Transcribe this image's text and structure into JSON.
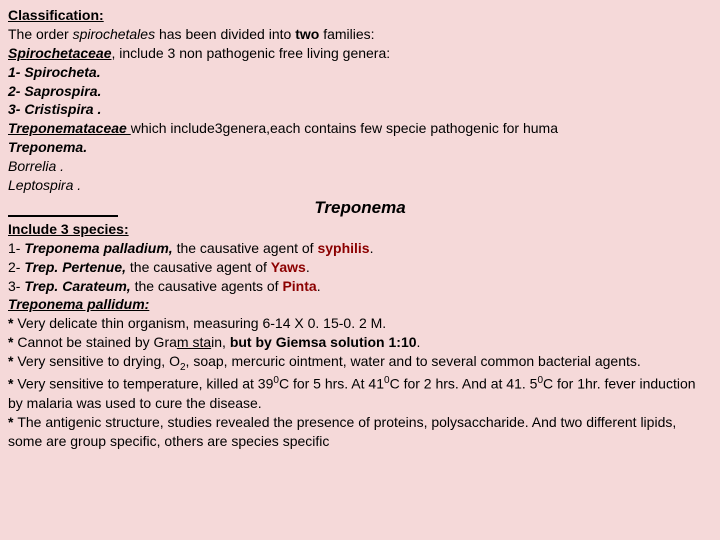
{
  "classification": {
    "heading": "Classification:",
    "intro_pre": "The order ",
    "intro_term": "spirochetales ",
    "intro_post": "has been divided into ",
    "intro_two": "two ",
    "intro_end": "families:",
    "family1_name": "Spirochetaceae",
    "family1_desc": ", include 3 non pathogenic free living genera:",
    "genera1": "1- Spirocheta.",
    "genera2": "2- Saprospira.",
    "genera3": "3- Cristispira .",
    "family2_name": "Treponemataceae ",
    "family2_desc": "which include3genera,each contains few specie pathogenic for huma",
    "gen2_1": "Treponema.",
    "gen2_2": "Borrelia .",
    "gen2_3": "Leptospira ."
  },
  "treponema": {
    "title": "Treponema",
    "include_label": "Include 3 species:",
    "sp1_pre": "1- ",
    "sp1_name": "Treponema palladium, ",
    "sp1_mid": "the causative agent of ",
    "sp1_disease": "syphilis",
    "sp1_end": ".",
    "sp2_pre": "2- ",
    "sp2_name": "Trep. Pertenue, ",
    "sp2_mid": "the causative agent of ",
    "sp2_disease": "Yaws",
    "sp2_end": ".",
    "sp3_pre": "3- ",
    "sp3_name": "Trep. Carateum, ",
    "sp3_mid": "the causative agents of ",
    "sp3_disease": "Pinta",
    "sp3_end": "."
  },
  "pallidum": {
    "heading": "Treponema pallidum:",
    "b1_star": "* ",
    "b1": "Very delicate thin organism, measuring 6-14 X 0. 15-0. 2 M.",
    "b2_star": "* ",
    "b2_a": "Cannot be stained by Gra",
    "b2_b": "m sta",
    "b2_c": "in, ",
    "b2_d": "but by ",
    "b2_e": "Giemsa solution 1:10",
    "b2_f": ".",
    "b3_star": "* ",
    "b3_a": "Very sensitive to drying, O",
    "b3_sub": "2",
    "b3_b": ", soap, mercuric ointment, water and to several common bacterial agents.",
    "b4_star": "* ",
    "b4_a": "Very sensitive to temperature, killed at 39",
    "b4_sup1": "0",
    "b4_b": "C for 5 hrs. At 41",
    "b4_sup2": "0",
    "b4_c": "C for 2 hrs. And at 41. 5",
    "b4_sup3": "0",
    "b4_d": "C for 1hr. fever induction by malaria was used to cure the disease.",
    "b5_star": "* ",
    "b5": "The antigenic structure, studies revealed the presence of proteins, polysaccharide. And two different lipids, some are group specific, others are species specific"
  },
  "colors": {
    "background": "#f5d9d9",
    "text": "#000000",
    "accent": "#8b0000"
  }
}
